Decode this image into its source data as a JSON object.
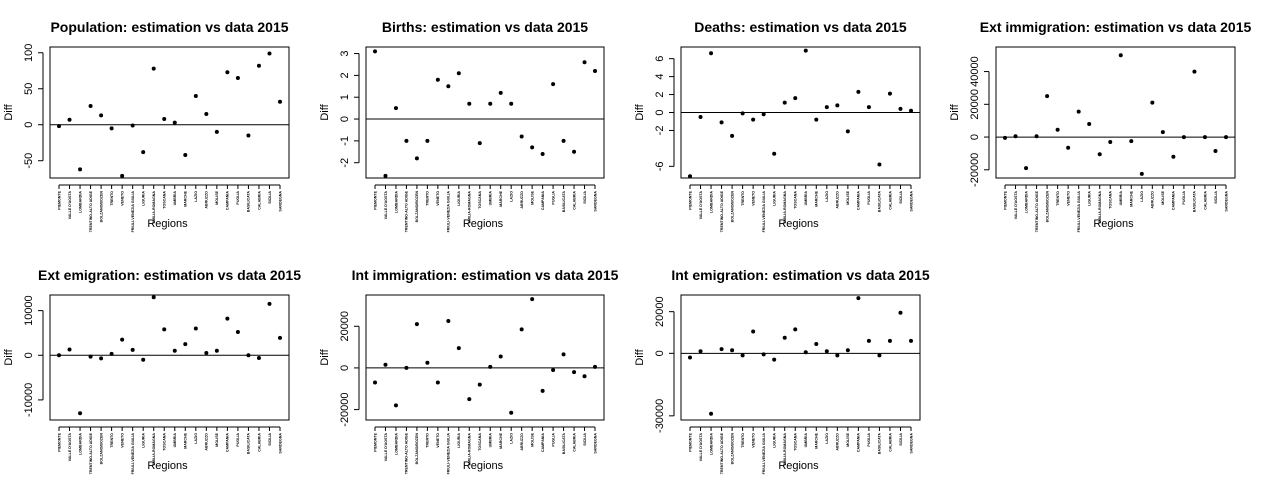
{
  "regions": [
    "PIEMONTE",
    "VALLE D'AOSTA",
    "LOMBARDIA",
    "TRENTINO-ALTO ADIGE",
    "BOLZANO/BOZEN",
    "TRENTO",
    "VENETO",
    "FRIULI-VENEZIA GIULIA",
    "LIGURIA",
    "EMILIA-ROMAGNA",
    "TOSCANA",
    "UMBRIA",
    "MARCHE",
    "LAZIO",
    "ABRUZZO",
    "MOLISE",
    "CAMPANIA",
    "PUGLIA",
    "BASILICATA",
    "CALABRIA",
    "SICILIA",
    "SARDEGNA"
  ],
  "chart_data": [
    {
      "type": "scatter",
      "title": "Population: estimation vs data 2015",
      "xlabel": "Regions",
      "ylabel": "Diff",
      "ylim": [
        -74,
        108
      ],
      "yticks": [
        -50,
        0,
        50,
        100
      ],
      "yticklabels": [
        "-50",
        "0",
        "50",
        "100"
      ],
      "hline": 0,
      "values": [
        -2,
        7,
        -62,
        26,
        13,
        -5,
        -71,
        -1,
        -38,
        78,
        8,
        3,
        -42,
        40,
        15,
        -10,
        73,
        65,
        -15,
        82,
        99,
        32
      ]
    },
    {
      "type": "scatter",
      "title": "Births: estimation vs data 2015",
      "xlabel": "Regions",
      "ylabel": "Diff",
      "ylim": [
        -2.7,
        3.3
      ],
      "yticks": [
        -2,
        -1,
        0,
        1,
        2,
        3
      ],
      "yticklabels": [
        "-2",
        "-1",
        "0",
        "1",
        "2",
        "3"
      ],
      "hline": 0,
      "values": [
        3.1,
        -2.6,
        0.5,
        -1.0,
        -1.8,
        -1.0,
        1.8,
        1.5,
        2.1,
        0.7,
        -1.1,
        0.7,
        1.2,
        0.7,
        -0.8,
        -1.3,
        -1.6,
        1.6,
        -1.0,
        -1.5,
        2.6,
        2.2
      ]
    },
    {
      "type": "scatter",
      "title": "Deaths: estimation vs data 2015",
      "xlabel": "Regions",
      "ylabel": "Diff",
      "ylim": [
        -7.3,
        7.3
      ],
      "yticks": [
        -6,
        -2,
        0,
        2,
        4,
        6
      ],
      "yticklabels": [
        "-6",
        "-2",
        "0",
        "2",
        "4",
        "6"
      ],
      "hline": 0,
      "values": [
        -7.1,
        -0.5,
        6.6,
        -1.1,
        -2.6,
        -0.1,
        -0.8,
        -0.2,
        -4.6,
        1.1,
        1.6,
        6.9,
        -0.8,
        0.6,
        0.8,
        -2.1,
        2.3,
        0.6,
        -5.8,
        2.1,
        0.4,
        0.2
      ]
    },
    {
      "type": "scatter",
      "title": "Ext immigration: estimation vs data 2015",
      "xlabel": "Regions",
      "ylabel": "Diff",
      "ylim": [
        -25000,
        55000
      ],
      "yticks": [
        -20000,
        0,
        20000,
        40000
      ],
      "yticklabels": [
        "-20000",
        "0",
        "20000",
        "40000"
      ],
      "hline": 0,
      "values": [
        -500,
        500,
        -19000,
        500,
        25000,
        4500,
        -6500,
        15500,
        8000,
        -10500,
        -3000,
        50000,
        -2500,
        -22500,
        21000,
        3000,
        -12000,
        0,
        40000,
        0,
        -8500,
        0
      ]
    },
    {
      "type": "scatter",
      "title": "Ext emigration: estimation vs data 2015",
      "xlabel": "Regions",
      "ylabel": "Diff",
      "ylim": [
        -14500,
        13500
      ],
      "yticks": [
        -10000,
        0,
        10000
      ],
      "yticklabels": [
        "-10000",
        "0",
        "10000"
      ],
      "hline": 0,
      "values": [
        0,
        1300,
        -13000,
        -300,
        -700,
        300,
        3500,
        1200,
        -1000,
        13000,
        5800,
        1000,
        2500,
        6000,
        500,
        1000,
        8200,
        5200,
        0,
        -600,
        11500,
        3900
      ]
    },
    {
      "type": "scatter",
      "title": "Int immigration: estimation vs data 2015",
      "xlabel": "Regions",
      "ylabel": "Diff",
      "ylim": [
        -25000,
        35000
      ],
      "yticks": [
        -20000,
        0,
        20000
      ],
      "yticklabels": [
        "-20000",
        "0",
        "20000"
      ],
      "hline": 0,
      "values": [
        -7000,
        1500,
        -18000,
        0,
        21000,
        2500,
        -7000,
        22500,
        9500,
        -15000,
        -8000,
        500,
        5500,
        -21500,
        18500,
        33000,
        -11000,
        -1000,
        6500,
        -2000,
        -4000,
        500
      ]
    },
    {
      "type": "scatter",
      "title": "Int emigration: estimation vs data 2015",
      "xlabel": "Regions",
      "ylabel": "Diff",
      "ylim": [
        -32000,
        28000
      ],
      "yticks": [
        -30000,
        0,
        20000
      ],
      "yticklabels": [
        "-30000",
        "0",
        "20000"
      ],
      "hline": 0,
      "values": [
        -2000,
        1000,
        -29000,
        2000,
        1500,
        -1000,
        10500,
        -500,
        -3000,
        7500,
        11500,
        500,
        4500,
        1000,
        -1000,
        1500,
        26500,
        6000,
        -1000,
        6000,
        19500,
        6000
      ]
    }
  ]
}
